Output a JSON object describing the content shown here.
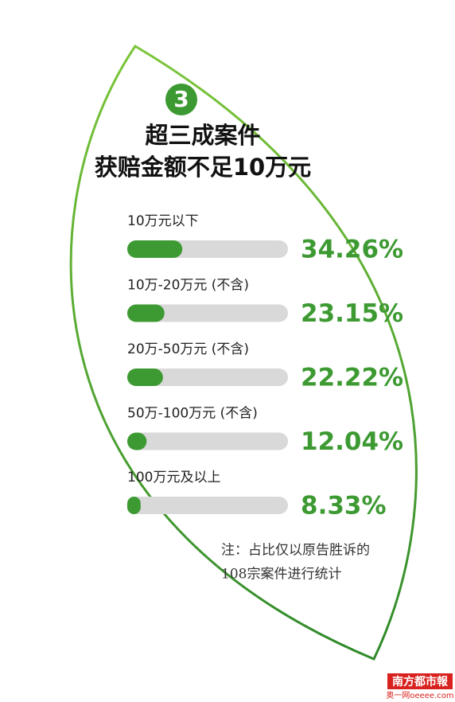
{
  "chart_data": {
    "type": "bar",
    "badge": "3",
    "title": "超三成案件",
    "subtitle": "获赔金额不足10万元",
    "categories": [
      "10万元以下",
      "10万-20万元 (不含)",
      "20万-50万元 (不含)",
      "50万-100万元 (不含)",
      "100万元及以上"
    ],
    "values": [
      34.26,
      23.15,
      22.22,
      12.04,
      8.33
    ],
    "value_labels": [
      "34.26%",
      "23.15%",
      "22.22%",
      "12.04%",
      "8.33%"
    ],
    "color": "#3d9a32",
    "xlim": [
      0,
      100
    ],
    "annotations": [
      "注：占比仅以原告胜诉的",
      "108宗案件进行统计"
    ],
    "source": [
      "南方都市報",
      "奥一网oeeee.com"
    ]
  }
}
